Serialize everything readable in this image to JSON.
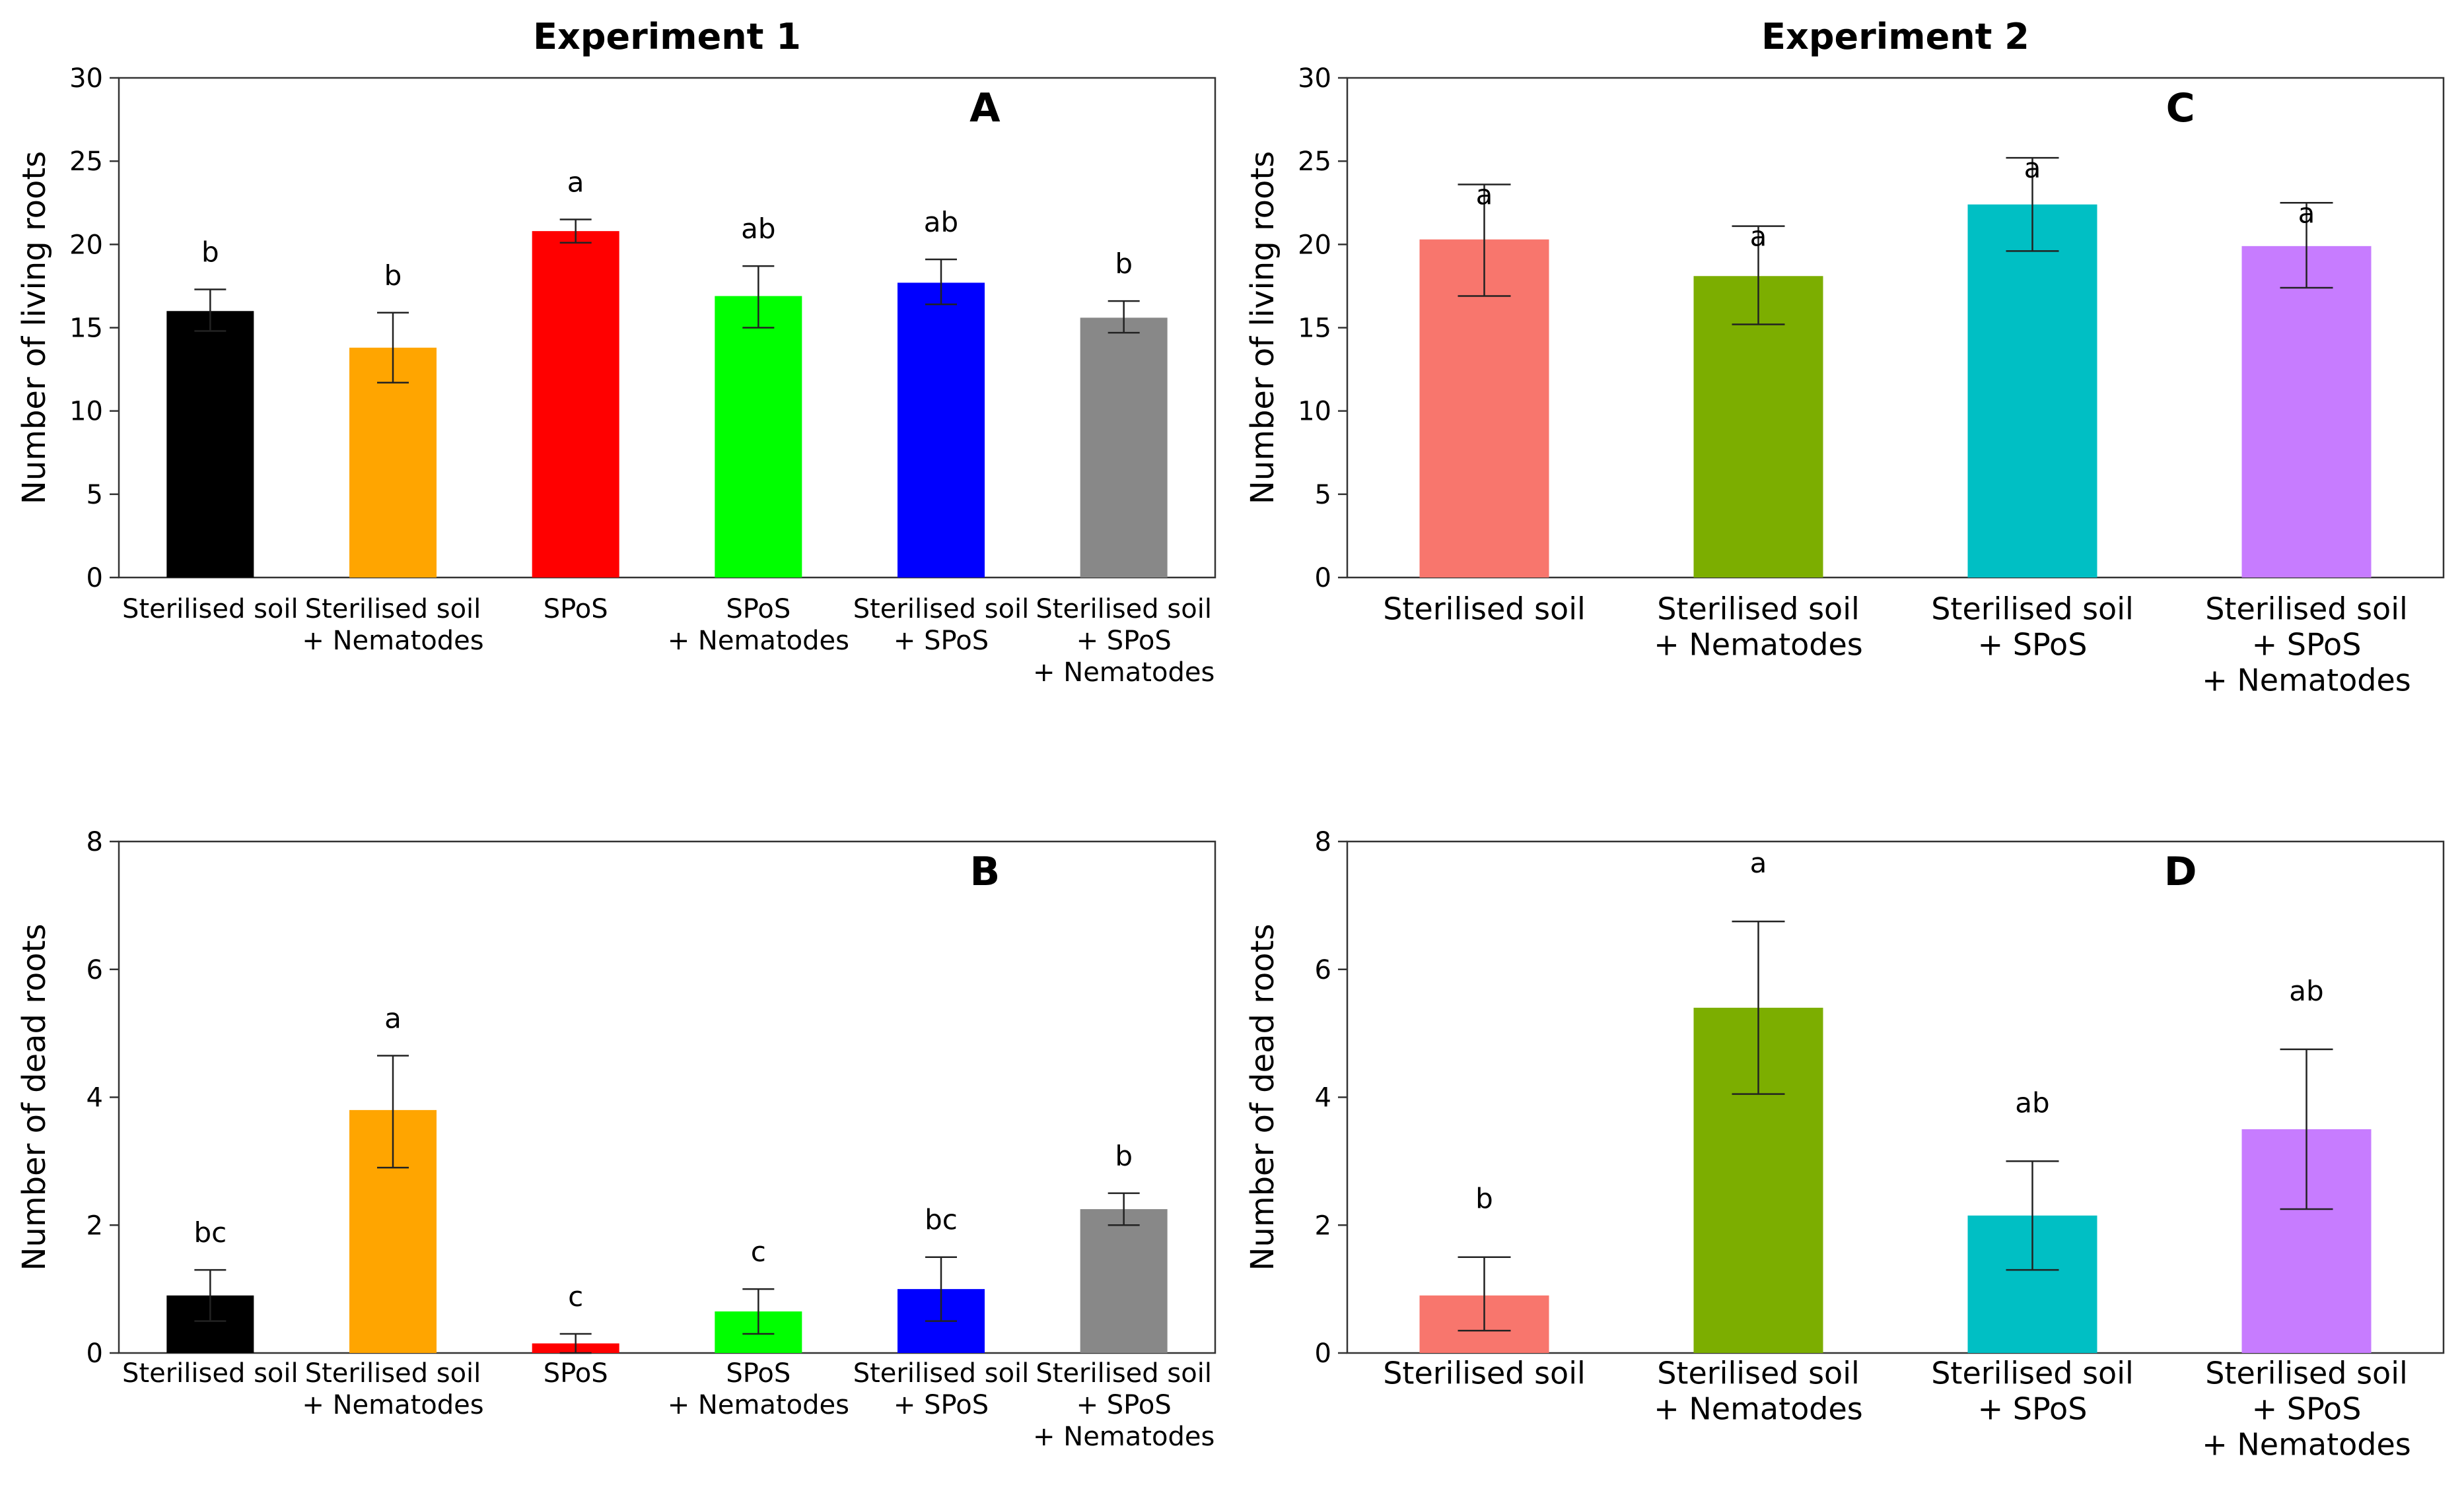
{
  "figure": {
    "experiment1_title": "Experiment 1",
    "experiment2_title": "Experiment 2"
  },
  "chart_data": [
    {
      "panel": "A",
      "type": "bar",
      "experiment": "Experiment 1",
      "ylabel": "Number of living roots",
      "ylim": [
        0,
        30
      ],
      "yticks": [
        0,
        5,
        10,
        15,
        20,
        25,
        30
      ],
      "categories": [
        [
          "Sterilised soil"
        ],
        [
          "Sterilised soil",
          "+ Nematodes"
        ],
        [
          "SPoS"
        ],
        [
          "SPoS",
          "+ Nematodes"
        ],
        [
          "Sterilised soil",
          "+ SPoS"
        ],
        [
          "Sterilised soil",
          "+ SPoS",
          "+ Nematodes"
        ]
      ],
      "values": [
        16.0,
        13.8,
        20.8,
        16.9,
        17.7,
        15.6
      ],
      "err_low": [
        14.8,
        11.7,
        20.1,
        15.0,
        16.4,
        14.7
      ],
      "err_high": [
        17.3,
        15.9,
        21.5,
        18.7,
        19.1,
        16.6
      ],
      "letters": [
        "b",
        "b",
        "a",
        "ab",
        "ab",
        "b"
      ],
      "colors": [
        "#000000",
        "#FFA500",
        "#FF0000",
        "#00FF00",
        "#0000FF",
        "#888888"
      ]
    },
    {
      "panel": "B",
      "type": "bar",
      "experiment": "Experiment 1",
      "ylabel": "Number of dead roots",
      "ylim": [
        0,
        8
      ],
      "yticks": [
        0,
        2,
        4,
        6,
        8
      ],
      "categories": [
        [
          "Sterilised soil"
        ],
        [
          "Sterilised soil",
          "+ Nematodes"
        ],
        [
          "SPoS"
        ],
        [
          "SPoS",
          "+ Nematodes"
        ],
        [
          "Sterilised soil",
          "+ SPoS"
        ],
        [
          "Sterilised soil",
          "+ SPoS",
          "+ Nematodes"
        ]
      ],
      "values": [
        0.9,
        3.8,
        0.15,
        0.65,
        1.0,
        2.25
      ],
      "err_low": [
        0.5,
        2.9,
        0.0,
        0.3,
        0.5,
        2.0
      ],
      "err_high": [
        1.3,
        4.65,
        0.3,
        1.0,
        1.5,
        2.5
      ],
      "letters": [
        "bc",
        "a",
        "c",
        "c",
        "bc",
        "b"
      ],
      "colors": [
        "#000000",
        "#FFA500",
        "#FF0000",
        "#00FF00",
        "#0000FF",
        "#888888"
      ]
    },
    {
      "panel": "C",
      "type": "bar",
      "experiment": "Experiment 2",
      "ylabel": "Number of living roots",
      "ylim": [
        0,
        30
      ],
      "yticks": [
        0,
        5,
        10,
        15,
        20,
        25,
        30
      ],
      "categories": [
        [
          "Sterilised soil"
        ],
        [
          "Sterilised soil",
          "+ Nematodes"
        ],
        [
          "Sterilised soil",
          "+ SPoS"
        ],
        [
          "Sterilised soil",
          "+ SPoS",
          "+ Nematodes"
        ]
      ],
      "values": [
        20.3,
        18.1,
        22.4,
        19.9
      ],
      "err_low": [
        16.9,
        15.2,
        19.6,
        17.4
      ],
      "err_high": [
        23.6,
        21.1,
        25.2,
        22.5
      ],
      "letters": [
        "a",
        "a",
        "a",
        "a"
      ],
      "colors": [
        "#F8766D",
        "#7CAE00",
        "#00BFC4",
        "#C77CFF"
      ]
    },
    {
      "panel": "D",
      "type": "bar",
      "experiment": "Experiment 2",
      "ylabel": "Number of dead roots",
      "ylim": [
        0,
        8
      ],
      "yticks": [
        0,
        2,
        4,
        6,
        8
      ],
      "categories": [
        [
          "Sterilised soil"
        ],
        [
          "Sterilised soil",
          "+ Nematodes"
        ],
        [
          "Sterilised soil",
          "+ SPoS"
        ],
        [
          "Sterilised soil",
          "+ SPoS",
          "+ Nematodes"
        ]
      ],
      "values": [
        0.9,
        5.4,
        2.15,
        3.5
      ],
      "err_low": [
        0.35,
        4.05,
        1.3,
        2.25
      ],
      "err_high": [
        1.5,
        6.75,
        3.0,
        4.75
      ],
      "letters": [
        "b",
        "a",
        "ab",
        "ab"
      ],
      "colors": [
        "#F8766D",
        "#7CAE00",
        "#00BFC4",
        "#C77CFF"
      ]
    }
  ]
}
